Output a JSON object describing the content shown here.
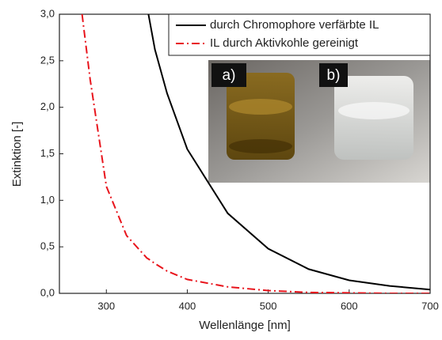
{
  "chart_data": {
    "type": "line",
    "xlabel": "Wellenlänge [nm]",
    "ylabel": "Extinktion [-]",
    "x": [
      270,
      280,
      300,
      325,
      350,
      352,
      360,
      375,
      400,
      450,
      500,
      550,
      600,
      650,
      700
    ],
    "series": [
      {
        "name": "durch Chromophore verfärbte IL",
        "color": "#000000",
        "line_style": "solid",
        "values": [
          null,
          null,
          null,
          null,
          null,
          3.0,
          2.62,
          2.15,
          1.55,
          0.86,
          0.48,
          0.26,
          0.14,
          0.08,
          0.04
        ]
      },
      {
        "name": "IL durch Aktivkohle gereinigt",
        "color": "#e8141c",
        "line_style": "dashdot",
        "values": [
          3.0,
          2.3,
          1.15,
          0.62,
          0.38,
          0.37,
          0.32,
          0.24,
          0.15,
          0.07,
          0.03,
          0.01,
          0.005,
          0.0,
          0.0
        ]
      }
    ],
    "xlim": [
      242,
      700
    ],
    "xticks": [
      300,
      400,
      500,
      600,
      700
    ],
    "ylim": [
      0,
      3
    ],
    "yticks": [
      {
        "value": 0,
        "label": "0,0"
      },
      {
        "value": 0.5,
        "label": "0,5"
      },
      {
        "value": 1,
        "label": "1,0"
      },
      {
        "value": 1.5,
        "label": "1,5"
      },
      {
        "value": 2,
        "label": "2,0"
      },
      {
        "value": 2.5,
        "label": "2,5"
      },
      {
        "value": 3,
        "label": "3,0"
      }
    ],
    "legend": "upper right",
    "annotations": [
      "a)",
      "b)"
    ]
  }
}
